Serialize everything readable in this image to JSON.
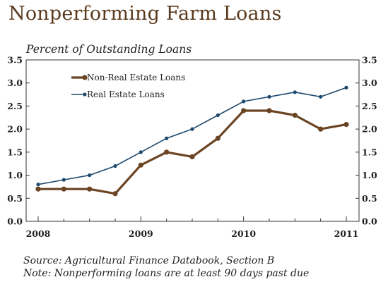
{
  "page": {
    "title": "Nonperforming Farm Loans",
    "subtitle": "Percent of Outstanding Loans",
    "notes": [
      "Source: Agricultural Finance Databook, Section B",
      "Note: Nonperforming loans are at least 90 days past due"
    ]
  },
  "chart_data": {
    "type": "line",
    "title": "Nonperforming Farm Loans",
    "ylabel": "Percent of Outstanding Loans",
    "xlabel": "",
    "x_ticks": [
      "2008",
      "2009",
      "2010",
      "2011"
    ],
    "y_ticks": [
      "0.0",
      "0.5",
      "1.0",
      "1.5",
      "2.0",
      "2.5",
      "3.0",
      "3.5"
    ],
    "ylim": [
      0,
      3.5
    ],
    "xlim": [
      2008,
      2011
    ],
    "grid": false,
    "legend_position": "top-left",
    "x": [
      2008,
      2008.25,
      2008.5,
      2008.75,
      2009,
      2009.25,
      2009.5,
      2009.75,
      2010,
      2010.25,
      2010.5,
      2010.75,
      2011
    ],
    "series": [
      {
        "name": "Non-Real Estate Loans",
        "color": "#6b4423",
        "values": [
          0.7,
          0.7,
          0.7,
          0.6,
          1.22,
          1.5,
          1.4,
          1.8,
          2.4,
          2.4,
          2.3,
          2.0,
          2.1
        ]
      },
      {
        "name": "Real Estate Loans",
        "color": "#1f4a6e",
        "values": [
          0.8,
          0.9,
          1.0,
          1.2,
          1.5,
          1.8,
          2.0,
          2.3,
          2.6,
          2.7,
          2.8,
          2.7,
          2.9
        ]
      }
    ]
  }
}
